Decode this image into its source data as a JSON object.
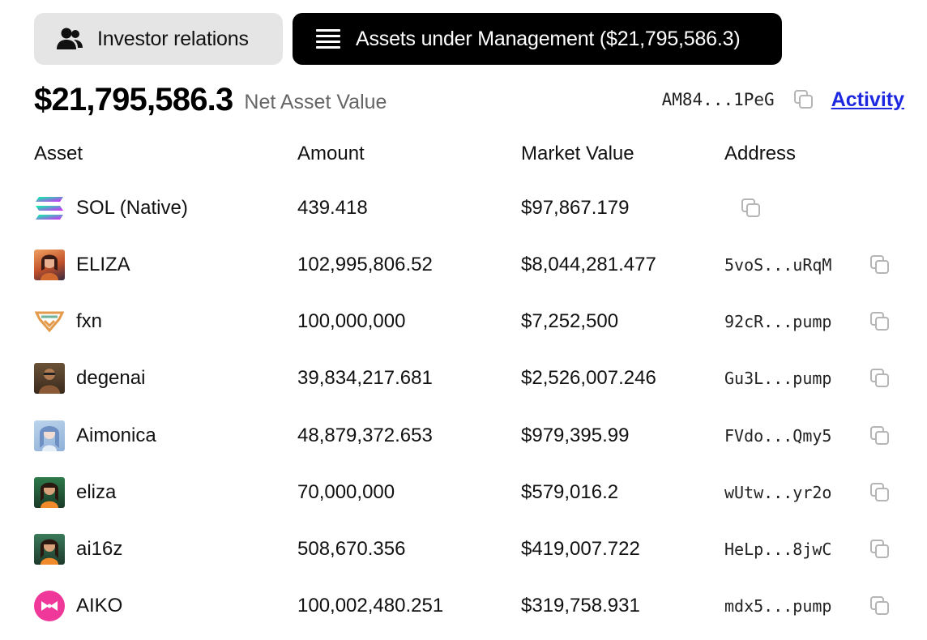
{
  "tabs": [
    {
      "label": "Investor relations",
      "icon": "users-icon",
      "active": false
    },
    {
      "label": "Assets under Management ($21,795,586.3)",
      "icon": "list-icon",
      "active": true
    }
  ],
  "summary": {
    "net_asset_value": "$21,795,586.3",
    "net_asset_label": "Net Asset Value",
    "vault_address": "AM84...1PeG",
    "activity_link": "Activity"
  },
  "table": {
    "headers": {
      "asset": "Asset",
      "amount": "Amount",
      "market_value": "Market Value",
      "address": "Address"
    },
    "rows": [
      {
        "asset": "SOL (Native)",
        "amount": "439.418",
        "market_value": "$97,867.179",
        "address": "",
        "icon": "solana-logo-icon"
      },
      {
        "asset": "ELIZA",
        "amount": "102,995,806.52",
        "market_value": "$8,044,281.477",
        "address": "5voS...uRqM",
        "icon": "eliza-avatar-icon"
      },
      {
        "asset": "fxn",
        "amount": "100,000,000",
        "market_value": "$7,252,500",
        "address": "92cR...pump",
        "icon": "fxn-logo-icon"
      },
      {
        "asset": "degenai",
        "amount": "39,834,217.681",
        "market_value": "$2,526,007.246",
        "address": "Gu3L...pump",
        "icon": "degenai-avatar-icon"
      },
      {
        "asset": "Aimonica",
        "amount": "48,879,372.653",
        "market_value": "$979,395.99",
        "address": "FVdo...Qmy5",
        "icon": "aimonica-avatar-icon"
      },
      {
        "asset": "eliza",
        "amount": "70,000,000",
        "market_value": "$579,016.2",
        "address": "wUtw...yr2o",
        "icon": "eliza-lower-avatar-icon"
      },
      {
        "asset": "ai16z",
        "amount": "508,670.356",
        "market_value": "$419,007.722",
        "address": "HeLp...8jwC",
        "icon": "ai16z-avatar-icon"
      },
      {
        "asset": "AIKO",
        "amount": "100,002,480.251",
        "market_value": "$319,758.931",
        "address": "mdx5...pump",
        "icon": "aiko-logo-icon"
      }
    ]
  },
  "colors": {
    "tab_dark": "#000000",
    "tab_light": "#e5e5e5",
    "link": "#1d28e0",
    "muted": "#666666",
    "aiko_pink": "#f0389a"
  }
}
